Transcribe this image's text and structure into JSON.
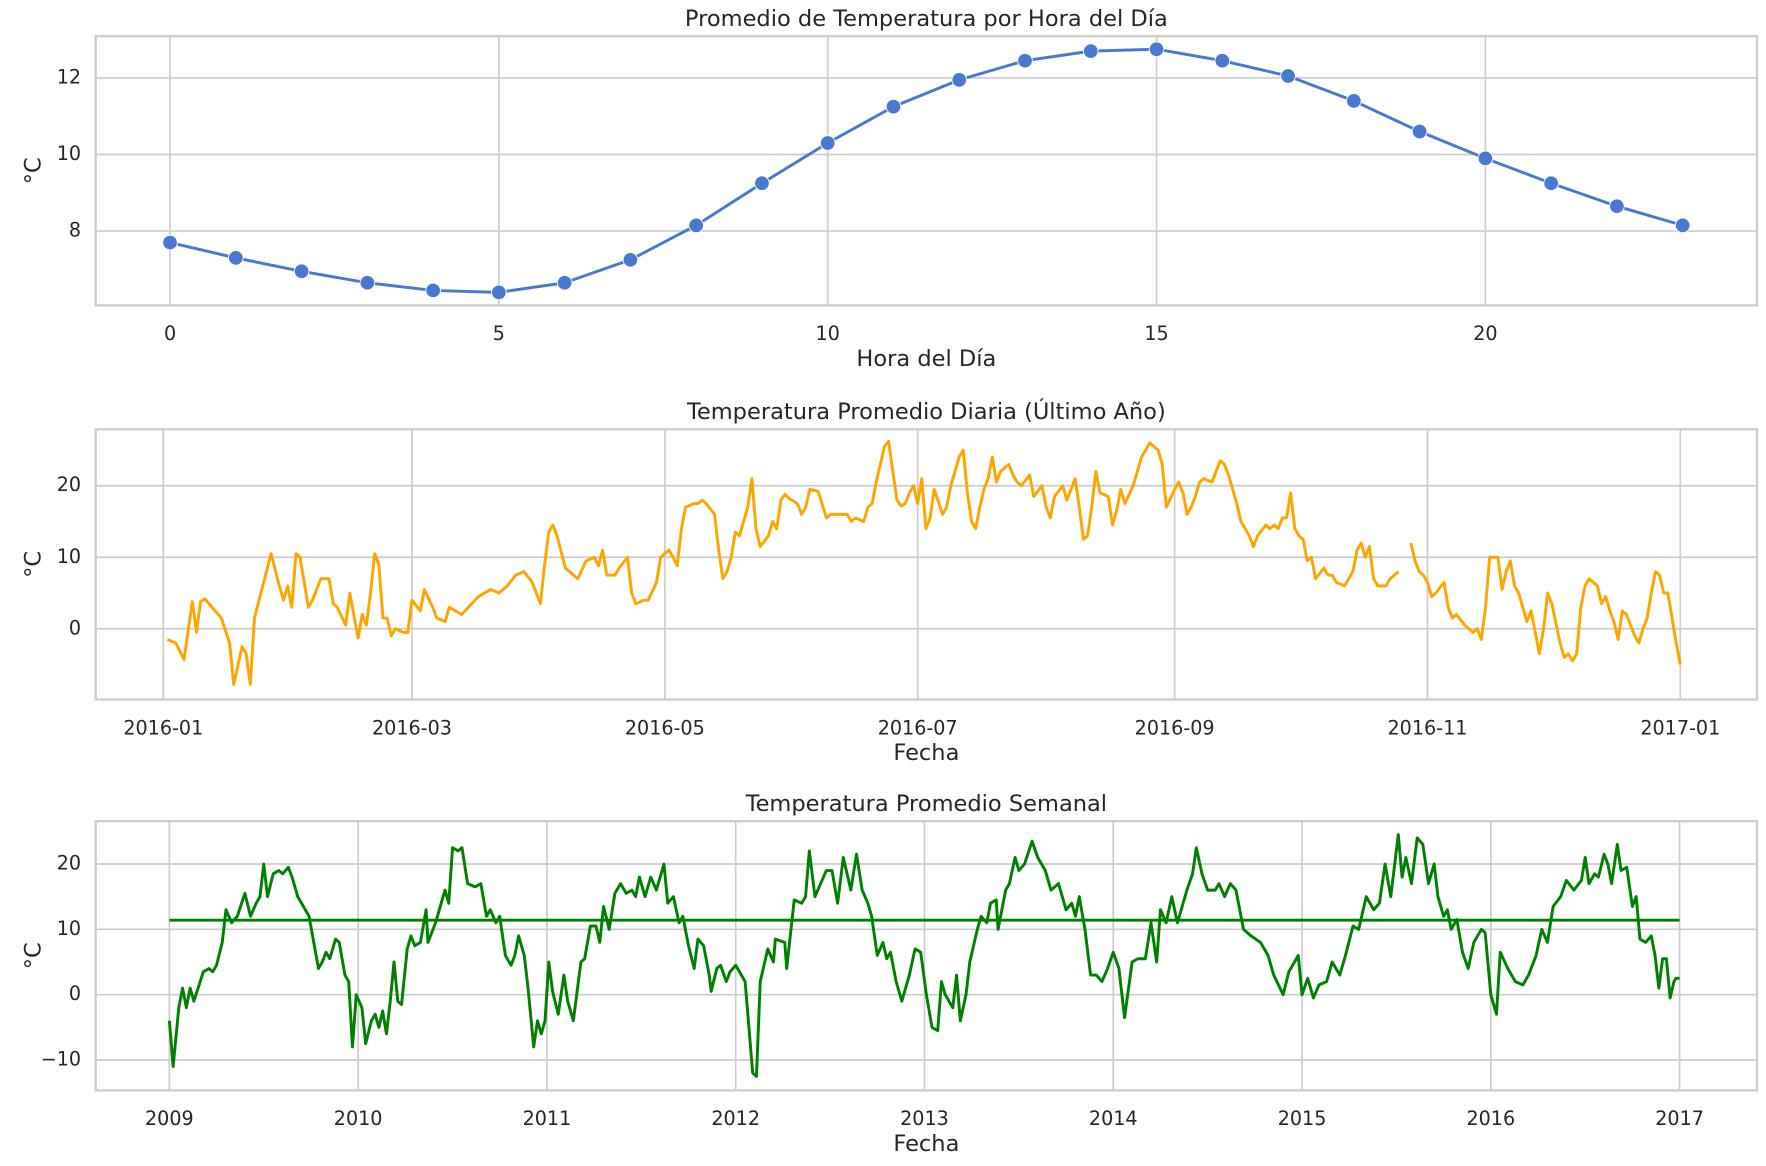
{
  "chart_data": [
    {
      "type": "line",
      "title": "Promedio de Temperatura por Hora del Día",
      "xlabel": "Hora del Día",
      "ylabel": "°C",
      "x": [
        0,
        1,
        2,
        3,
        4,
        5,
        6,
        7,
        8,
        9,
        10,
        11,
        12,
        13,
        14,
        15,
        16,
        17,
        18,
        19,
        20,
        21,
        22,
        23
      ],
      "values": [
        7.7,
        7.3,
        6.95,
        6.65,
        6.45,
        6.4,
        6.65,
        7.25,
        8.15,
        9.25,
        10.3,
        11.25,
        11.95,
        12.45,
        12.7,
        12.75,
        12.45,
        12.05,
        11.4,
        10.6,
        9.9,
        9.25,
        8.65,
        8.15
      ],
      "color": "#4878d0",
      "markers": true,
      "xlim": [
        -1.13,
        24.13
      ],
      "xticks": [
        0,
        5,
        10,
        15,
        20
      ],
      "ylim": [
        6.06,
        13.09
      ],
      "yticks": [
        8,
        10,
        12
      ],
      "grid": true
    },
    {
      "type": "line",
      "title": "Temperatura Promedio Diaria (Último Año)",
      "xlabel": "Fecha",
      "ylabel": "°C",
      "x": [
        1,
        3,
        5,
        7,
        8,
        9,
        10,
        14,
        16,
        17,
        19,
        20,
        21,
        22,
        24,
        26,
        28,
        29,
        30,
        31,
        32,
        33,
        35,
        36,
        38,
        40,
        41,
        42,
        44,
        45,
        47,
        48,
        49,
        50,
        51,
        52,
        53,
        54,
        55,
        56,
        58,
        59,
        60,
        62,
        63,
        65,
        66,
        68,
        69,
        72,
        76,
        79,
        81,
        83,
        85,
        87,
        89,
        91,
        92,
        93,
        94,
        95,
        97,
        100,
        102,
        104,
        105,
        106,
        107,
        109,
        110,
        112,
        113,
        114,
        116,
        117,
        119,
        120,
        122,
        123,
        124,
        125,
        126,
        128,
        129,
        130,
        131,
        133,
        134,
        135,
        136,
        137,
        138,
        139,
        141,
        142,
        143,
        144,
        146,
        147,
        148,
        149,
        150,
        151,
        153,
        154,
        155,
        156,
        158,
        160,
        161,
        163,
        165,
        166,
        167,
        169,
        170,
        171,
        172,
        174,
        175,
        176,
        177,
        178,
        179,
        180,
        181,
        182,
        183,
        184,
        185,
        186,
        188,
        189,
        190,
        191,
        192,
        193,
        194,
        195,
        196,
        197,
        198,
        199,
        200,
        201,
        202,
        204,
        205,
        206,
        207,
        209,
        210,
        212,
        213,
        214,
        215,
        217,
        218,
        219,
        220,
        221,
        222,
        223,
        224,
        225,
        226,
        228,
        229,
        230,
        231,
        232,
        234,
        235,
        236,
        238,
        240,
        241,
        242,
        244,
        245,
        246,
        247,
        248,
        249,
        250,
        251,
        253,
        254,
        255,
        256,
        257,
        259,
        260,
        261,
        262,
        263,
        264,
        266,
        267,
        268,
        269,
        270,
        271,
        272,
        273,
        274,
        275,
        276,
        277,
        278,
        280,
        281,
        282,
        283,
        285,
        286,
        287,
        288,
        289,
        290,
        291,
        292,
        293,
        295,
        296,
        298,
        299,
        301,
        302,
        303,
        304,
        305,
        306,
        307,
        309,
        310,
        311,
        312,
        314,
        316,
        317,
        318,
        319,
        320,
        322,
        323,
        324,
        325,
        326,
        327,
        329,
        330,
        332,
        333,
        334,
        335,
        337,
        338,
        339,
        340,
        341,
        342,
        343,
        344,
        346,
        347,
        348,
        349,
        350,
        351,
        352,
        353,
        355,
        356,
        357,
        358,
        359,
        360,
        361,
        362,
        363,
        364,
        365,
        366
      ],
      "values": [
        -1.5,
        -2,
        -4.3,
        3.8,
        -0.5,
        3.8,
        4.2,
        1.5,
        -2,
        -7.8,
        -2.5,
        -3.5,
        -7.8,
        1.5,
        6,
        10.5,
        6,
        4,
        6,
        3,
        10.5,
        10,
        3,
        4,
        7,
        7,
        3.5,
        3,
        0.5,
        5,
        -1.3,
        2,
        0.5,
        5,
        10.5,
        9,
        1.5,
        1.5,
        -1,
        0,
        -0.5,
        -0.5,
        4,
        2.5,
        5.5,
        3,
        1.5,
        1,
        3,
        2,
        4.5,
        5.5,
        5,
        6,
        7.5,
        8,
        6.5,
        3.5,
        9,
        13.5,
        14.5,
        13,
        8.5,
        7,
        9.5,
        10,
        8.8,
        11,
        7.5,
        7.5,
        8.5,
        10,
        5,
        3.5,
        4,
        4,
        6.5,
        10,
        11,
        10,
        8.8,
        14,
        17,
        17.5,
        17.5,
        18,
        17.5,
        16,
        11,
        7,
        8,
        10,
        13.5,
        13,
        17,
        21,
        14,
        11.5,
        13,
        15,
        14,
        18,
        18.8,
        18.2,
        17.5,
        16,
        17,
        19.5,
        19.2,
        15.5,
        16,
        16,
        16,
        15,
        15.5,
        15,
        17,
        17.5,
        20.5,
        25.5,
        26.2,
        22,
        18,
        17.2,
        17.5,
        19,
        20,
        17.5,
        21,
        14,
        15.5,
        19.5,
        16,
        17,
        20,
        22,
        24,
        25,
        19,
        15,
        14,
        17,
        19.5,
        21,
        24,
        20.5,
        22,
        23,
        21.5,
        20.5,
        20,
        21.5,
        18.5,
        20,
        17,
        15.5,
        18.5,
        20,
        18,
        19.5,
        21,
        17,
        12.5,
        13,
        17,
        22,
        19,
        18.5,
        14.5,
        16.5,
        19.5,
        17.5,
        20,
        22,
        24,
        26,
        25,
        23,
        17,
        19.5,
        20.5,
        19,
        16,
        17,
        18.5,
        20.5,
        21,
        20.5,
        22,
        23.5,
        23,
        21.5,
        17.5,
        15,
        14,
        13,
        11.5,
        13,
        14.5,
        14,
        14.5,
        14,
        15.5,
        15.5,
        19,
        14,
        13,
        12.5,
        9.5,
        10,
        7,
        8.5,
        7.5,
        7.5,
        6.5,
        6,
        7,
        8,
        11,
        12,
        10,
        11.5,
        7,
        6,
        6,
        7,
        8,
        null,
        12,
        9.5,
        8,
        7.5,
        6.5,
        4.5,
        5,
        6.5,
        3,
        1.5,
        2,
        0.5,
        -0.5,
        0,
        -1.5,
        3,
        10,
        10,
        5.5,
        8,
        9.5,
        6,
        5,
        1,
        2.5,
        -3.5,
        0,
        5,
        3.5,
        -2,
        -4,
        -3.5,
        -4.5,
        -3.5,
        3,
        6,
        7,
        6,
        3.5,
        4.5,
        2.5,
        1,
        -1.5,
        2.5,
        2,
        -1,
        -2,
        0,
        1.5,
        5,
        8,
        7.5,
        5,
        5,
        1.5,
        -2,
        -5
      ],
      "color": "#ffa500",
      "xlim": [
        -16.3,
        384.5
      ],
      "xticks": [
        {
          "value": 0,
          "label": "2016-01"
        },
        {
          "value": 60,
          "label": "2016-03"
        },
        {
          "value": 121,
          "label": "2016-05"
        },
        {
          "value": 182,
          "label": "2016-07"
        },
        {
          "value": 244,
          "label": "2016-09"
        },
        {
          "value": 305,
          "label": "2016-11"
        },
        {
          "value": 366,
          "label": "2017-01"
        }
      ],
      "ylim": [
        -9.9,
        27.9
      ],
      "yticks": [
        0,
        10,
        20
      ],
      "grid": true
    },
    {
      "type": "line",
      "title": "Temperatura Promedio Semanal",
      "xlabel": "Fecha",
      "ylabel": "°C",
      "x": [
        2009,
        2009.02,
        2009.05,
        2009.07,
        2009.09,
        2009.11,
        2009.13,
        2009.18,
        2009.21,
        2009.23,
        2009.25,
        2009.28,
        2009.3,
        2009.33,
        2009.36,
        2009.4,
        2009.43,
        2009.46,
        2009.48,
        2009.5,
        2009.52,
        2009.55,
        2009.58,
        2009.6,
        2009.63,
        2009.65,
        2009.68,
        2009.72,
        2009.74,
        2009.79,
        2009.81,
        2009.83,
        2009.85,
        2009.88,
        2009.9,
        2009.93,
        2009.95,
        2009.97,
        2009.99,
        2010.02,
        2010.04,
        2010.07,
        2010.09,
        2010.11,
        2010.13,
        2010.15,
        2010.17,
        2010.19,
        2010.21,
        2010.23,
        2010.26,
        2010.28,
        2010.3,
        2010.33,
        2010.36,
        2010.37,
        2010.41,
        2010.44,
        2010.46,
        2010.48,
        2010.5,
        2010.53,
        2010.55,
        2010.58,
        2010.62,
        2010.65,
        2010.68,
        2010.7,
        2010.73,
        2010.75,
        2010.78,
        2010.81,
        2010.83,
        2010.85,
        2010.88,
        2010.9,
        2010.93,
        2010.95,
        2010.97,
        2010.99,
        2011.01,
        2011.03,
        2011.06,
        2011.09,
        2011.11,
        2011.14,
        2011.18,
        2011.2,
        2011.23,
        2011.26,
        2011.28,
        2011.3,
        2011.33,
        2011.36,
        2011.39,
        2011.42,
        2011.45,
        2011.47,
        2011.49,
        2011.52,
        2011.55,
        2011.58,
        2011.62,
        2011.64,
        2011.67,
        2011.7,
        2011.72,
        2011.75,
        2011.78,
        2011.8,
        2011.83,
        2011.86,
        2011.87,
        2011.9,
        2011.92,
        2011.95,
        2011.97,
        2012,
        2012.05,
        2012.09,
        2012.11,
        2012.13,
        2012.17,
        2012.2,
        2012.21,
        2012.26,
        2012.27,
        2012.31,
        2012.35,
        2012.37,
        2012.39,
        2012.42,
        2012.45,
        2012.48,
        2012.51,
        2012.54,
        2012.57,
        2012.61,
        2012.64,
        2012.67,
        2012.7,
        2012.72,
        2012.75,
        2012.78,
        2012.8,
        2012.82,
        2012.85,
        2012.88,
        2012.92,
        2012.95,
        2012.98,
        2013.01,
        2013.04,
        2013.07,
        2013.09,
        2013.11,
        2013.15,
        2013.17,
        2013.19,
        2013.22,
        2013.24,
        2013.28,
        2013.3,
        2013.33,
        2013.35,
        2013.38,
        2013.39,
        2013.43,
        2013.45,
        2013.48,
        2013.5,
        2013.53,
        2013.57,
        2013.6,
        2013.64,
        2013.67,
        2013.71,
        2013.75,
        2013.78,
        2013.8,
        2013.82,
        2013.85,
        2013.88,
        2013.91,
        2013.94,
        2013.97,
        2014,
        2014.03,
        2014.06,
        2014.1,
        2014.13,
        2014.17,
        2014.2,
        2014.23,
        2014.25,
        2014.28,
        2014.31,
        2014.34,
        2014.36,
        2014.39,
        2014.42,
        2014.44,
        2014.47,
        2014.5,
        2014.54,
        2014.56,
        2014.59,
        2014.62,
        2014.65,
        2014.69,
        2014.73,
        2014.78,
        2014.82,
        2014.85,
        2014.9,
        2014.93,
        2014.98,
        2015,
        2015.03,
        2015.06,
        2015.09,
        2015.13,
        2015.16,
        2015.2,
        2015.23,
        2015.27,
        2015.3,
        2015.34,
        2015.38,
        2015.41,
        2015.44,
        2015.47,
        2015.51,
        2015.53,
        2015.55,
        2015.58,
        2015.61,
        2015.64,
        2015.67,
        2015.7,
        2015.72,
        2015.75,
        2015.77,
        2015.79,
        2015.82,
        2015.85,
        2015.88,
        2015.91,
        2015.95,
        2015.97,
        2016,
        2016.03,
        2016.05,
        2016.09,
        2016.13,
        2016.17,
        2016.2,
        2016.24,
        2016.27,
        2016.3,
        2016.33,
        2016.37,
        2016.4,
        2016.44,
        2016.48,
        2016.5,
        2016.52,
        2016.55,
        2016.57,
        2016.6,
        2016.62,
        2016.64,
        2016.67,
        2016.69,
        2016.72,
        2016.75,
        2016.77,
        2016.79,
        2016.82,
        2016.85,
        2016.87,
        2016.89,
        2016.91,
        2016.93,
        2016.95,
        2016.97,
        2016.98,
        2017
      ],
      "values": [
        -4,
        -11,
        -2,
        1,
        -2,
        1,
        -1,
        3.5,
        4,
        3.5,
        4.5,
        8,
        13,
        11,
        12,
        15.5,
        12,
        14,
        15,
        20,
        15,
        18.5,
        19,
        18.5,
        19.5,
        18,
        15,
        13,
        12,
        4,
        5,
        6.5,
        5.5,
        8.5,
        8,
        3,
        2,
        -8,
        0,
        -2,
        -7.5,
        -4,
        -3,
        -5,
        -2.5,
        -6,
        -1,
        5,
        -1,
        -1.5,
        7,
        9,
        7.5,
        8,
        13,
        8,
        11,
        14,
        16,
        14,
        22.5,
        22,
        22.5,
        17,
        16.5,
        17,
        12,
        13,
        11,
        12,
        6,
        4.5,
        6,
        9,
        6,
        1,
        -8,
        -4,
        -6,
        -4,
        5,
        0.5,
        -3,
        3,
        -1,
        -4,
        5,
        5.5,
        10.5,
        10.5,
        8,
        13.5,
        10,
        15.5,
        17,
        15.5,
        16,
        15,
        18,
        15,
        18,
        16,
        20,
        14,
        15,
        11,
        12,
        7.5,
        4,
        8.5,
        7.5,
        3,
        0.5,
        4,
        4.5,
        2,
        3.5,
        4.5,
        2,
        -12,
        -12.5,
        2,
        7,
        5,
        8.5,
        8,
        4,
        14.5,
        14,
        15,
        22,
        15,
        17,
        19,
        19,
        14,
        21,
        16,
        21.5,
        16,
        14,
        12,
        6,
        8,
        5.5,
        6.5,
        2,
        -1,
        3,
        7,
        6.5,
        0,
        -5,
        -5.5,
        2,
        0,
        -2,
        3,
        -4,
        0,
        5,
        10,
        12,
        11,
        14,
        14.5,
        10,
        16,
        17,
        21,
        19,
        20,
        23.5,
        21,
        19,
        16,
        17,
        13,
        14,
        12,
        15,
        10,
        3,
        3,
        2,
        4,
        6.5,
        4,
        -3.5,
        5,
        5.5,
        5.5,
        11,
        5,
        13,
        11,
        15,
        11,
        13,
        16,
        18.5,
        22.5,
        18.5,
        16,
        16,
        17,
        15,
        17,
        16,
        10,
        9,
        8,
        6,
        3,
        0,
        3.5,
        6,
        0,
        2.5,
        -0.5,
        1.5,
        2,
        5,
        3,
        6,
        10.5,
        10,
        15,
        13,
        14,
        20,
        15,
        24.5,
        18,
        21,
        17,
        24,
        23,
        17,
        20,
        15,
        12,
        13,
        10,
        11.5,
        6.5,
        4,
        8,
        10,
        9.5,
        0,
        -3,
        6.5,
        4,
        2,
        1.5,
        3,
        6,
        10,
        8,
        13.5,
        15,
        17.5,
        16,
        17.5,
        21,
        17,
        18.5,
        18,
        21.5,
        20,
        17,
        23,
        19,
        19.5,
        13.5,
        15,
        8.5,
        8,
        9,
        6,
        1,
        5.5,
        5.5,
        -0.5,
        2,
        2.5,
        2.5
      ],
      "color": "#008000",
      "hline": 11.4,
      "xlim": [
        2008.61,
        2017.41
      ],
      "xticks": [
        2009,
        2010,
        2011,
        2012,
        2013,
        2014,
        2015,
        2016,
        2017
      ],
      "ylim": [
        -14.65,
        26.55
      ],
      "yticks": [
        {
          "value": -10,
          "label": "−10"
        },
        0,
        10,
        20
      ],
      "grid": true
    }
  ]
}
